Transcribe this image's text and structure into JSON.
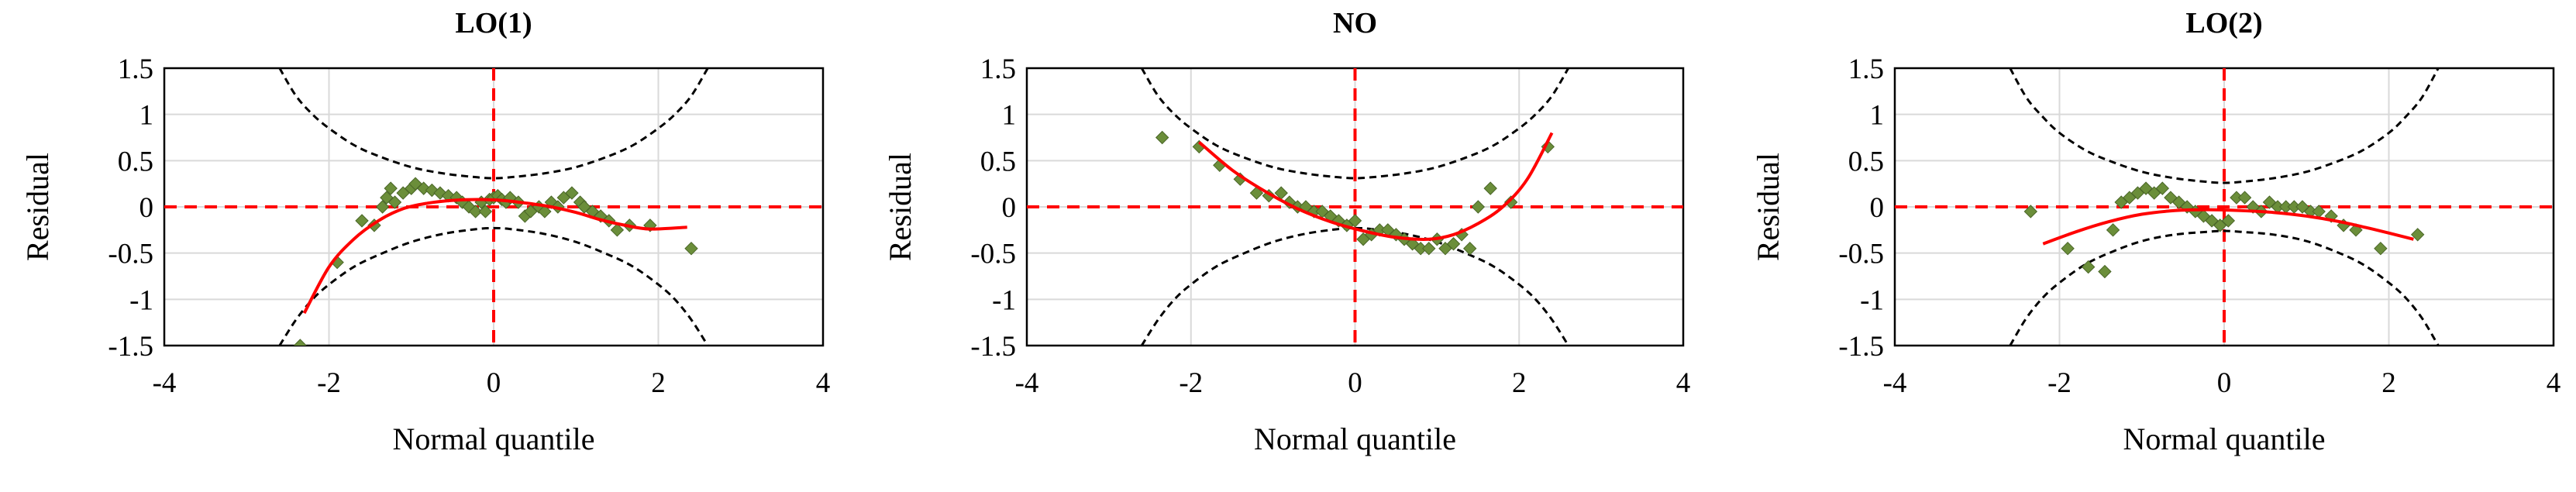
{
  "chart_data": [
    {
      "type": "scatter",
      "title": "LO(1)",
      "xlabel": "Normal quantile",
      "ylabel": "Residual",
      "xlim": [
        -4,
        4
      ],
      "ylim": [
        -1.5,
        1.5
      ],
      "xticks": [
        "-4",
        "-2",
        "0",
        "2",
        "4"
      ],
      "yticks": [
        "1.5",
        "1",
        "0.5",
        "0",
        "-0.5",
        "-1",
        "-1.5"
      ],
      "grid": true,
      "series": [
        {
          "kind": "points",
          "color": "#6b8e3a",
          "x": [
            -2.35,
            -1.9,
            -1.6,
            -1.45,
            -1.35,
            -1.3,
            -1.25,
            -1.2,
            -1.1,
            -1.0,
            -0.95,
            -0.85,
            -0.75,
            -0.65,
            -0.55,
            -0.45,
            -0.38,
            -0.3,
            -0.22,
            -0.15,
            -0.1,
            -0.05,
            0.0,
            0.05,
            0.1,
            0.15,
            0.2,
            0.3,
            0.38,
            0.45,
            0.55,
            0.62,
            0.7,
            0.78,
            0.85,
            0.95,
            1.05,
            1.1,
            1.2,
            1.3,
            1.4,
            1.5,
            1.65,
            1.9,
            2.4
          ],
          "y": [
            -1.5,
            -0.6,
            -0.15,
            -0.2,
            0.0,
            0.1,
            0.2,
            0.05,
            0.15,
            0.2,
            0.25,
            0.2,
            0.18,
            0.15,
            0.12,
            0.1,
            0.05,
            0.0,
            -0.05,
            0.05,
            -0.05,
            0.08,
            0.1,
            0.12,
            0.08,
            0.05,
            0.1,
            0.05,
            -0.1,
            -0.05,
            0.0,
            -0.05,
            0.05,
            0.0,
            0.1,
            0.15,
            0.05,
            0.0,
            -0.05,
            -0.1,
            -0.15,
            -0.25,
            -0.2,
            -0.2,
            -0.45
          ]
        },
        {
          "kind": "curve",
          "color": "#ff0000",
          "x": [
            -2.3,
            -2.0,
            -1.7,
            -1.4,
            -1.1,
            -0.8,
            -0.5,
            -0.2,
            0.1,
            0.4,
            0.7,
            1.0,
            1.3,
            1.6,
            1.9,
            2.35
          ],
          "y": [
            -1.15,
            -0.65,
            -0.35,
            -0.15,
            -0.02,
            0.04,
            0.07,
            0.08,
            0.07,
            0.04,
            0.0,
            -0.06,
            -0.14,
            -0.2,
            -0.24,
            -0.22
          ]
        },
        {
          "kind": "envelope",
          "color": "#000000",
          "x": [
            -2.6,
            -2.4,
            -2.2,
            -2.0,
            -1.7,
            -1.4,
            -1.0,
            -0.6,
            -0.2,
            0.0,
            0.2,
            0.6,
            1.0,
            1.4,
            1.7,
            2.0,
            2.2,
            2.4,
            2.6
          ],
          "upper": [
            1.5,
            1.2,
            1.0,
            0.85,
            0.67,
            0.55,
            0.43,
            0.36,
            0.32,
            0.31,
            0.32,
            0.36,
            0.43,
            0.55,
            0.67,
            0.85,
            1.0,
            1.2,
            1.5
          ],
          "lower": [
            -1.5,
            -1.22,
            -1.0,
            -0.84,
            -0.65,
            -0.52,
            -0.38,
            -0.29,
            -0.24,
            -0.23,
            -0.24,
            -0.29,
            -0.38,
            -0.52,
            -0.65,
            -0.84,
            -1.0,
            -1.22,
            -1.5
          ]
        }
      ]
    },
    {
      "type": "scatter",
      "title": "NO",
      "xlabel": "Normal quantile",
      "ylabel": "Residual",
      "xlim": [
        -4,
        4
      ],
      "ylim": [
        -1.5,
        1.5
      ],
      "xticks": [
        "-4",
        "-2",
        "0",
        "2",
        "4"
      ],
      "yticks": [
        "1.5",
        "1",
        "0.5",
        "0",
        "-0.5",
        "-1",
        "-1.5"
      ],
      "grid": true,
      "series": [
        {
          "kind": "points",
          "color": "#6b8e3a",
          "x": [
            -2.35,
            -1.9,
            -1.65,
            -1.4,
            -1.2,
            -1.05,
            -0.9,
            -0.8,
            -0.7,
            -0.6,
            -0.5,
            -0.4,
            -0.3,
            -0.2,
            -0.1,
            0.0,
            0.1,
            0.2,
            0.3,
            0.4,
            0.5,
            0.6,
            0.7,
            0.8,
            0.9,
            1.0,
            1.1,
            1.2,
            1.3,
            1.4,
            1.5,
            1.65,
            1.9,
            2.35
          ],
          "y": [
            0.75,
            0.65,
            0.45,
            0.3,
            0.15,
            0.12,
            0.15,
            0.05,
            0.0,
            0.0,
            -0.05,
            -0.05,
            -0.1,
            -0.15,
            -0.2,
            -0.15,
            -0.35,
            -0.3,
            -0.25,
            -0.25,
            -0.3,
            -0.35,
            -0.4,
            -0.45,
            -0.45,
            -0.35,
            -0.45,
            -0.4,
            -0.3,
            -0.45,
            0.0,
            0.2,
            0.05,
            0.65
          ]
        },
        {
          "kind": "curve",
          "color": "#ff0000",
          "x": [
            -1.9,
            -1.5,
            -1.1,
            -0.7,
            -0.3,
            0.1,
            0.5,
            0.9,
            1.2,
            1.5,
            1.8,
            2.1,
            2.4
          ],
          "y": [
            0.7,
            0.4,
            0.17,
            -0.02,
            -0.16,
            -0.26,
            -0.33,
            -0.35,
            -0.3,
            -0.18,
            0.0,
            0.3,
            0.8
          ]
        },
        {
          "kind": "envelope",
          "color": "#000000",
          "x": [
            -2.6,
            -2.4,
            -2.2,
            -2.0,
            -1.7,
            -1.4,
            -1.0,
            -0.6,
            -0.2,
            0.0,
            0.2,
            0.6,
            1.0,
            1.4,
            1.7,
            2.0,
            2.2,
            2.4,
            2.6
          ],
          "upper": [
            1.5,
            1.2,
            1.0,
            0.85,
            0.67,
            0.55,
            0.43,
            0.36,
            0.32,
            0.31,
            0.32,
            0.36,
            0.43,
            0.55,
            0.67,
            0.85,
            1.0,
            1.2,
            1.5
          ],
          "lower": [
            -1.5,
            -1.22,
            -1.0,
            -0.84,
            -0.65,
            -0.52,
            -0.38,
            -0.29,
            -0.24,
            -0.23,
            -0.24,
            -0.29,
            -0.38,
            -0.52,
            -0.65,
            -0.84,
            -1.0,
            -1.22,
            -1.5
          ]
        }
      ]
    },
    {
      "type": "scatter",
      "title": "LO(2)",
      "xlabel": "Normal quantile",
      "ylabel": "Residual",
      "xlim": [
        -4,
        4
      ],
      "ylim": [
        -1.5,
        1.5
      ],
      "xticks": [
        "-4",
        "-2",
        "0",
        "2",
        "4"
      ],
      "yticks": [
        "1.5",
        "1",
        "0.5",
        "0",
        "-0.5",
        "-1",
        "-1.5"
      ],
      "grid": true,
      "series": [
        {
          "kind": "points",
          "color": "#6b8e3a",
          "x": [
            -2.35,
            -1.9,
            -1.65,
            -1.45,
            -1.35,
            -1.25,
            -1.15,
            -1.05,
            -0.95,
            -0.85,
            -0.75,
            -0.65,
            -0.55,
            -0.45,
            -0.35,
            -0.25,
            -0.15,
            -0.05,
            0.05,
            0.15,
            0.25,
            0.35,
            0.45,
            0.55,
            0.65,
            0.75,
            0.85,
            0.95,
            1.05,
            1.15,
            1.3,
            1.45,
            1.6,
            1.9,
            2.35
          ],
          "y": [
            -0.05,
            -0.45,
            -0.65,
            -0.7,
            -0.25,
            0.05,
            0.1,
            0.15,
            0.2,
            0.15,
            0.2,
            0.1,
            0.05,
            0.0,
            -0.05,
            -0.1,
            -0.15,
            -0.2,
            -0.15,
            0.1,
            0.1,
            0.0,
            -0.05,
            0.05,
            0.0,
            0.0,
            0.0,
            0.0,
            -0.05,
            -0.05,
            -0.1,
            -0.2,
            -0.25,
            -0.45,
            -0.3
          ]
        },
        {
          "kind": "curve",
          "color": "#ff0000",
          "x": [
            -2.2,
            -1.8,
            -1.4,
            -1.0,
            -0.6,
            -0.2,
            0.2,
            0.6,
            1.0,
            1.4,
            1.8,
            2.3
          ],
          "y": [
            -0.4,
            -0.27,
            -0.16,
            -0.08,
            -0.04,
            -0.03,
            -0.04,
            -0.06,
            -0.1,
            -0.16,
            -0.24,
            -0.35
          ]
        },
        {
          "kind": "envelope",
          "color": "#000000",
          "x": [
            -2.6,
            -2.4,
            -2.2,
            -2.0,
            -1.7,
            -1.4,
            -1.0,
            -0.6,
            -0.2,
            0.0,
            0.2,
            0.6,
            1.0,
            1.4,
            1.7,
            2.0,
            2.2,
            2.4,
            2.6
          ],
          "upper": [
            1.5,
            1.18,
            0.97,
            0.8,
            0.62,
            0.5,
            0.38,
            0.31,
            0.27,
            0.26,
            0.27,
            0.31,
            0.38,
            0.5,
            0.62,
            0.8,
            0.97,
            1.18,
            1.5
          ],
          "lower": [
            -1.5,
            -1.2,
            -0.98,
            -0.82,
            -0.63,
            -0.5,
            -0.37,
            -0.3,
            -0.27,
            -0.26,
            -0.27,
            -0.3,
            -0.37,
            -0.5,
            -0.63,
            -0.82,
            -0.98,
            -1.2,
            -1.5
          ]
        }
      ]
    }
  ]
}
